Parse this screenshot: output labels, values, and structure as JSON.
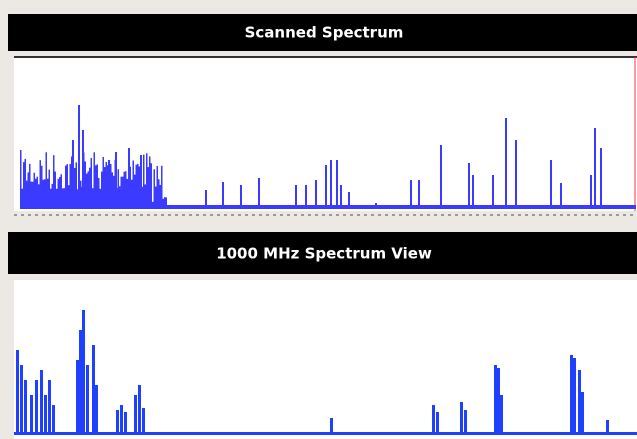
{
  "panels": [
    {
      "title": "Scanned Spectrum"
    },
    {
      "title": "1000 MHz Spectrum View"
    }
  ]
}
